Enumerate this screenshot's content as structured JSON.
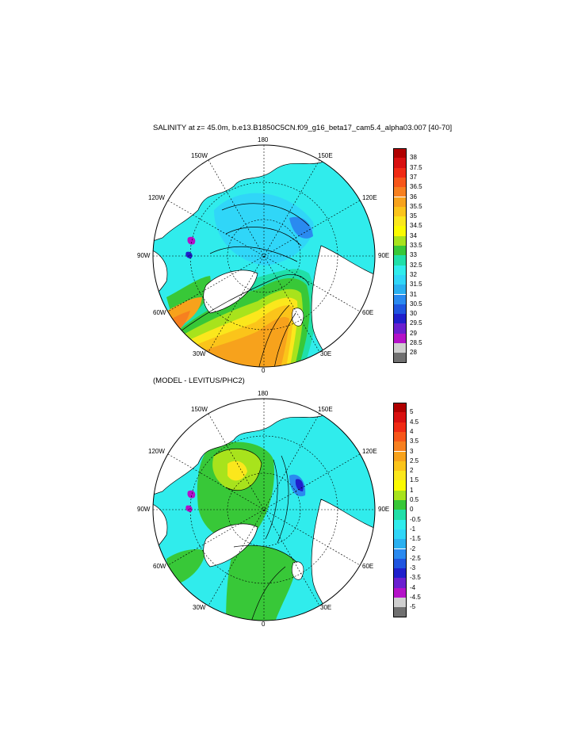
{
  "page": {
    "title": "SALINITY at z=  45.0m, b.e13.B1850C5CN.f09_g16_beta17_cam5.4_alpha03.007 [40-70]",
    "subtitle": "(MODEL - LEVITUS/PHC2)"
  },
  "map_labels": {
    "top": "180",
    "top_left": "150W",
    "top_right": "150E",
    "upper_left": "120W",
    "upper_right": "120E",
    "left": "90W",
    "right": "90E",
    "lower_left": "60W",
    "lower_right": "60E",
    "bottom_left": "30W",
    "bottom_right": "30E",
    "bottom": "0"
  },
  "colorbar1": {
    "labels": [
      "38",
      "37.5",
      "37",
      "36.5",
      "36",
      "35.5",
      "35",
      "34.5",
      "34",
      "33.5",
      "33",
      "32.5",
      "32",
      "31.5",
      "31",
      "30.5",
      "30",
      "29.5",
      "29",
      "28.5",
      "28"
    ],
    "colors": [
      "#b00000",
      "#d81010",
      "#f02a14",
      "#f7561a",
      "#f78020",
      "#f7a21c",
      "#fbc41a",
      "#fbe71c",
      "#fbfb00",
      "#a8e31c",
      "#38c838",
      "#20dfa8",
      "#30ecec",
      "#30d6f8",
      "#2ab0f0",
      "#2a8af0",
      "#1f55e0",
      "#1f1fcc",
      "#6a1fd0",
      "#b412c8",
      "#cfcfcf",
      "#707070"
    ]
  },
  "colorbar2": {
    "labels": [
      "5",
      "4.5",
      "4",
      "3.5",
      "3",
      "2.5",
      "2",
      "1.5",
      "1",
      "0.5",
      "0",
      "-0.5",
      "-1",
      "-1.5",
      "-2",
      "-2.5",
      "-3",
      "-3.5",
      "-4",
      "-4.5",
      "-5"
    ],
    "colors": [
      "#b00000",
      "#d81010",
      "#f02a14",
      "#f7561a",
      "#f78020",
      "#f7a21c",
      "#fbc41a",
      "#fbe71c",
      "#fbfb00",
      "#a8e31c",
      "#38c838",
      "#20dfa8",
      "#30ecec",
      "#30d6f8",
      "#2ab0f0",
      "#2a8af0",
      "#1f55e0",
      "#1f1fcc",
      "#6a1fd0",
      "#b412c8",
      "#cfcfcf",
      "#707070"
    ]
  },
  "colors": {
    "land": "#ffffff",
    "coast": "#000000",
    "teal": "#20dfa8",
    "green": "#38c838",
    "lightgreen": "#a8e31c",
    "cyan": "#30ecec",
    "sky": "#30d6f8",
    "blue": "#2ab0f0",
    "darkblue": "#1f1fcc",
    "purple": "#b412c8",
    "yellow": "#fbfb00",
    "gold": "#fbc41a",
    "orange": "#f7a21c",
    "darkorange": "#f78020"
  }
}
